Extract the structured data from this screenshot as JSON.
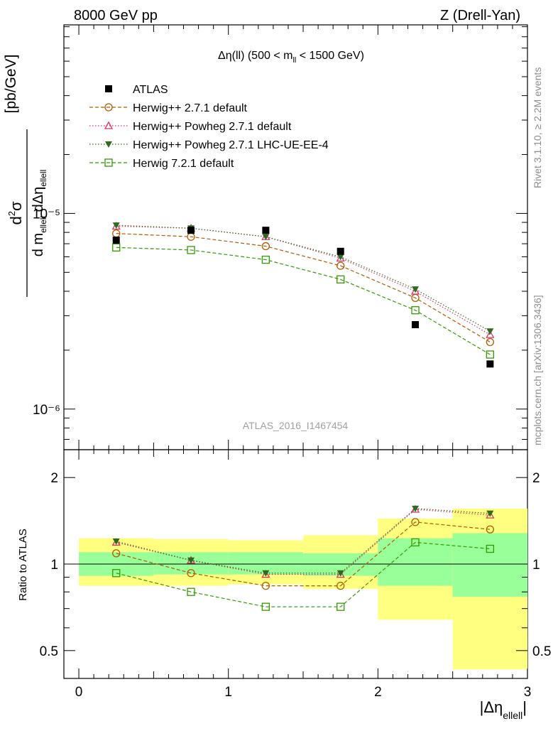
{
  "header": {
    "left": "8000 GeV pp",
    "right": "Z (Drell-Yan)"
  },
  "side_text": {
    "rivet": "Rivet 3.1.10, ≥ 2.2M events",
    "mcplots": "mcplots.cern.ch [arXiv:1306.3436]"
  },
  "chart_data": [
    {
      "type": "scatter",
      "title": "Δη(ll) (500 < m_ll < 1500 GeV)",
      "watermark": "ATLAS_2016_I1467454",
      "xlabel": "|Δη_ellell|",
      "ylabel": "d²σ / d m_ellell dΔη_ellell [pb/GeV]",
      "yscale": "log",
      "xlim": [
        -0.1,
        3.0
      ],
      "ylim": [
        6.2e-07,
        9.2e-05
      ],
      "ytick_labels": [
        "10⁻⁶",
        "10⁻⁵"
      ],
      "legend_position": "top-left",
      "x": [
        0.25,
        0.75,
        1.25,
        1.75,
        2.25,
        2.75
      ],
      "series": [
        {
          "name": "ATLAS",
          "color": "#000000",
          "marker": "filled-square",
          "line": "none",
          "values": [
            7.3e-06,
            8.2e-06,
            8.2e-06,
            6.4e-06,
            2.7e-06,
            1.7e-06
          ]
        },
        {
          "name": "Herwig++ 2.7.1 default",
          "color": "#b35900",
          "marker": "open-circle",
          "line": "dashed",
          "values": [
            7.9e-06,
            7.6e-06,
            6.8e-06,
            5.4e-06,
            3.7e-06,
            2.2e-06
          ]
        },
        {
          "name": "Herwig++ Powheg 2.7.1 default",
          "color": "#d6336c",
          "marker": "open-triangle",
          "line": "dotted",
          "values": [
            8.6e-06,
            8.4e-06,
            7.6e-06,
            5.9e-06,
            4e-06,
            2.4e-06
          ]
        },
        {
          "name": "Herwig++ Powheg 2.7.1 LHC-UE-EE-4",
          "color": "#2e6b1f",
          "marker": "filled-triangle-down",
          "line": "dotted",
          "values": [
            8.7e-06,
            8.4e-06,
            7.6e-06,
            6e-06,
            4.1e-06,
            2.5e-06
          ]
        },
        {
          "name": "Herwig 7.2.1 default",
          "color": "#339900",
          "marker": "open-square",
          "line": "dashed",
          "values": [
            6.7e-06,
            6.5e-06,
            5.8e-06,
            4.6e-06,
            3.2e-06,
            1.9e-06
          ]
        }
      ]
    },
    {
      "type": "scatter",
      "ylabel": "Ratio to ATLAS",
      "xlabel": "|Δη_ellell|",
      "xlim": [
        -0.1,
        3.0
      ],
      "ylim": [
        0.4,
        2.5
      ],
      "xticks": [
        0,
        1,
        2,
        3
      ],
      "yticks": [
        0.5,
        1,
        2
      ],
      "x": [
        0.25,
        0.75,
        1.25,
        1.75,
        2.25,
        2.75
      ],
      "bin_edges": [
        0,
        0.5,
        1.0,
        1.5,
        2.0,
        2.5,
        3.0
      ],
      "bands": {
        "stat_color": "#99ff99",
        "total_color": "#ffff80",
        "stat_low": [
          0.91,
          0.92,
          0.92,
          0.91,
          0.84,
          0.77
        ],
        "stat_high": [
          1.1,
          1.1,
          1.1,
          1.09,
          1.23,
          1.28
        ],
        "total_low": [
          0.84,
          0.84,
          0.85,
          0.82,
          0.64,
          0.43
        ],
        "total_high": [
          1.23,
          1.22,
          1.21,
          1.26,
          1.44,
          1.56
        ]
      },
      "series": [
        {
          "name": "Herwig++ 2.7.1 default",
          "values": [
            1.09,
            0.93,
            0.84,
            0.84,
            1.4,
            1.32
          ]
        },
        {
          "name": "Herwig++ Powheg 2.7.1 default",
          "values": [
            1.19,
            1.03,
            0.92,
            0.92,
            1.55,
            1.48
          ]
        },
        {
          "name": "Herwig++ Powheg 2.7.1 LHC-UE-EE-4",
          "values": [
            1.2,
            1.03,
            0.93,
            0.93,
            1.56,
            1.5
          ]
        },
        {
          "name": "Herwig 7.2.1 default",
          "values": [
            0.93,
            0.8,
            0.71,
            0.71,
            1.19,
            1.13
          ]
        }
      ]
    }
  ]
}
